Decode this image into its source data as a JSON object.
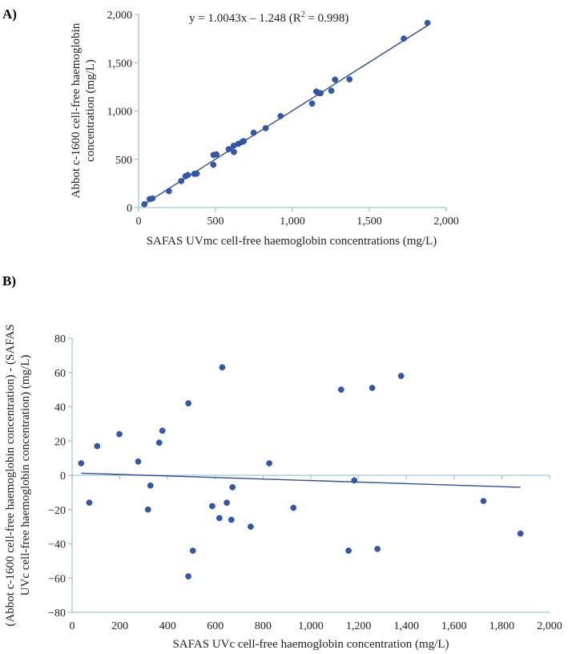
{
  "chart_data": [
    {
      "panel_label": "A)",
      "type": "scatter",
      "xlabel": "SAFAS UVmc cell-free haemoglobin concentrations (mg/L)",
      "ylabel_lines": [
        "Abbot c-1600 cell-free haemoglobin",
        "concentration (mg/L)"
      ],
      "xlim": [
        0,
        2000
      ],
      "ylim": [
        0,
        2000
      ],
      "x_ticks": [
        0,
        500,
        1000,
        1500,
        2000
      ],
      "x_tick_labels": [
        "0",
        "500",
        "1,000",
        "1,500",
        "2,000"
      ],
      "y_ticks": [
        0,
        500,
        1000,
        1500,
        2000
      ],
      "y_tick_labels": [
        "0",
        "500",
        "1,000",
        "1,500",
        "2,000"
      ],
      "equation": {
        "prefix": "y = 1.0043x  – 1.248 (R",
        "sup": "2",
        "suffix": " =  0.998)"
      },
      "fit": {
        "slope": 1.0043,
        "intercept": -1.248,
        "r2": 0.998
      },
      "points": [
        [
          38,
          35
        ],
        [
          72,
          88
        ],
        [
          90,
          95
        ],
        [
          197,
          170
        ],
        [
          277,
          275
        ],
        [
          305,
          325
        ],
        [
          320,
          337
        ],
        [
          362,
          349
        ],
        [
          378,
          352
        ],
        [
          486,
          443
        ],
        [
          487,
          545
        ],
        [
          506,
          551
        ],
        [
          586,
          605
        ],
        [
          618,
          640
        ],
        [
          620,
          575
        ],
        [
          648,
          660
        ],
        [
          673,
          680
        ],
        [
          684,
          688
        ],
        [
          748,
          775
        ],
        [
          826,
          822
        ],
        [
          923,
          947
        ],
        [
          1128,
          1077
        ],
        [
          1155,
          1202
        ],
        [
          1171,
          1186
        ],
        [
          1183,
          1184
        ],
        [
          1253,
          1210
        ],
        [
          1277,
          1325
        ],
        [
          1371,
          1328
        ],
        [
          1724,
          1750
        ],
        [
          1878,
          1912
        ]
      ]
    },
    {
      "panel_label": "B)",
      "type": "scatter",
      "xlabel": "SAFAS UVc cell-free haemoglobin concentration (mg/L)",
      "ylabel_lines": [
        "(Abbot c-1600 cell-free haemoglobin concentration) - (SAFAS",
        "UVc cell-free haemoglobin concentration) (mg/L)"
      ],
      "xlim": [
        0,
        2000
      ],
      "ylim": [
        -80,
        80
      ],
      "x_ticks": [
        0,
        200,
        400,
        600,
        800,
        1000,
        1200,
        1400,
        1600,
        1800,
        2000
      ],
      "x_tick_labels": [
        "0",
        "200",
        "400",
        "600",
        "800",
        "1,000",
        "1,200",
        "1,400",
        "1,600",
        "1,800",
        "2,000"
      ],
      "y_ticks": [
        80,
        60,
        40,
        20,
        0,
        -20,
        -40,
        -60,
        -80
      ],
      "y_tick_labels": [
        "80",
        "60",
        "40",
        "20",
        "0",
        "−20",
        "−40",
        "−60",
        "−80"
      ],
      "fit": {
        "x": [
          38,
          1878
        ],
        "y": [
          1.2,
          -7.0
        ]
      },
      "points": [
        [
          38,
          7
        ],
        [
          72,
          -16
        ],
        [
          105,
          17
        ],
        [
          198,
          24
        ],
        [
          277,
          8
        ],
        [
          318,
          -20
        ],
        [
          328,
          -6
        ],
        [
          365,
          19
        ],
        [
          378,
          26
        ],
        [
          487,
          42
        ],
        [
          487,
          -59
        ],
        [
          506,
          -44
        ],
        [
          587,
          -18
        ],
        [
          617,
          -25
        ],
        [
          629,
          63
        ],
        [
          648,
          -16
        ],
        [
          667,
          -26
        ],
        [
          672,
          -7
        ],
        [
          748,
          -30
        ],
        [
          826,
          7
        ],
        [
          927,
          -19
        ],
        [
          1127,
          50
        ],
        [
          1158,
          -44
        ],
        [
          1182,
          -3
        ],
        [
          1257,
          51
        ],
        [
          1279,
          -43
        ],
        [
          1378,
          58
        ],
        [
          1723,
          -15
        ],
        [
          1878,
          -34
        ]
      ]
    }
  ]
}
